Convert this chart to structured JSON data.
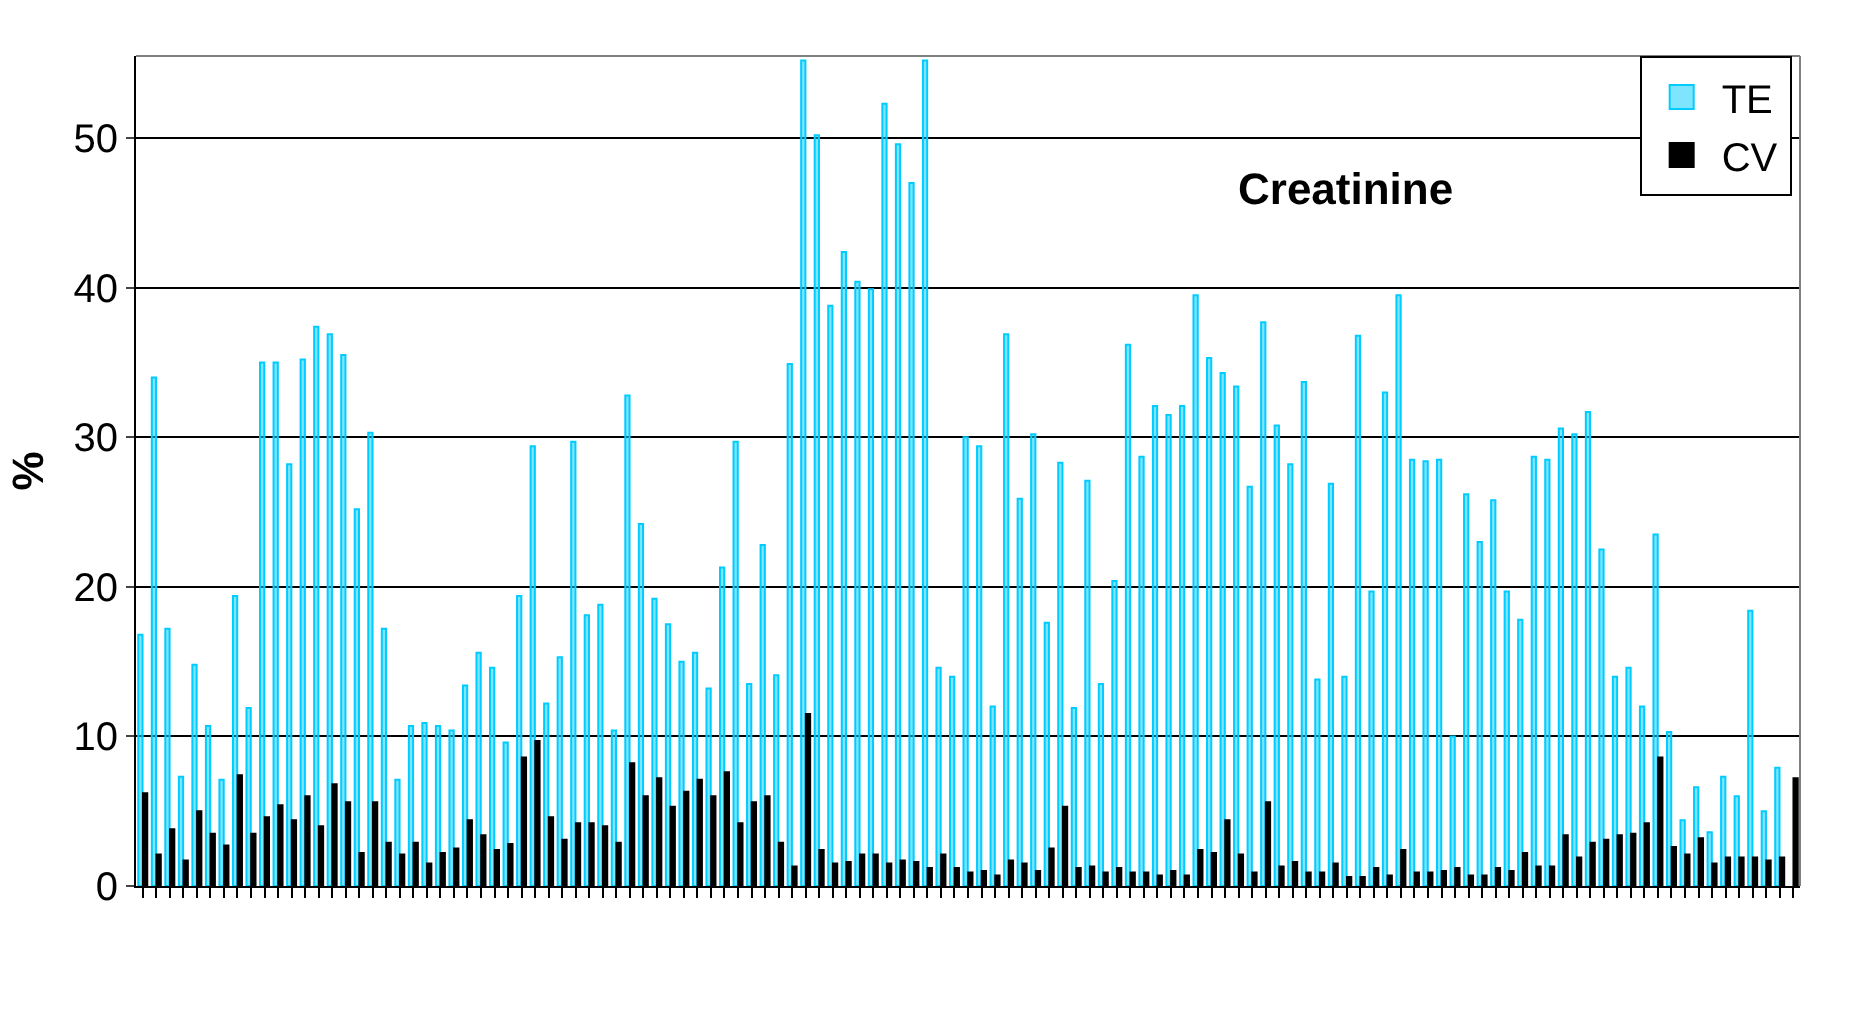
{
  "chart_data": {
    "type": "bar",
    "title": "Creatinine",
    "ylabel": "%",
    "categories": [
      null,
      null,
      null,
      null,
      null,
      null,
      null,
      null,
      null,
      null,
      null,
      null,
      null,
      null,
      null,
      null,
      null,
      null,
      null,
      null,
      null,
      null,
      null,
      null,
      null,
      null,
      null,
      null,
      null,
      null,
      null,
      null,
      null,
      null,
      null,
      null,
      null,
      null,
      null,
      null,
      null,
      null,
      null,
      null,
      null,
      null,
      null,
      null,
      null,
      null,
      null,
      null,
      null,
      null,
      null,
      null,
      null,
      null,
      null,
      null,
      null,
      null,
      null,
      null,
      null,
      null,
      null,
      null,
      null,
      null,
      null,
      null,
      null,
      null,
      null,
      null,
      null,
      null,
      null,
      null,
      null,
      null,
      null,
      null,
      null,
      null,
      null,
      null,
      null,
      null,
      null,
      null,
      null,
      null,
      null,
      null,
      null,
      null,
      null,
      null,
      null,
      null,
      null,
      null,
      null,
      null,
      null,
      null,
      null,
      null,
      null,
      null,
      null,
      null,
      null,
      null,
      null,
      null,
      null,
      null,
      null,
      null,
      null
    ],
    "series": [
      {
        "name": "TE",
        "color": "#00ccff",
        "values": [
          16.8,
          34.0,
          17.2,
          7.3,
          14.8,
          10.7,
          7.1,
          19.4,
          11.9,
          35.0,
          35.0,
          28.2,
          35.2,
          37.4,
          36.9,
          35.5,
          25.2,
          30.3,
          17.2,
          7.1,
          10.7,
          10.9,
          10.7,
          10.4,
          13.4,
          15.6,
          14.6,
          9.6,
          19.4,
          29.4,
          12.2,
          15.3,
          29.7,
          18.1,
          18.8,
          10.4,
          32.8,
          24.2,
          19.2,
          17.5,
          15.0,
          15.6,
          13.2,
          21.3,
          29.7,
          13.5,
          22.8,
          14.1,
          34.9,
          55.2,
          50.2,
          38.8,
          42.4,
          40.4,
          39.9,
          52.3,
          49.6,
          47.0,
          55.2,
          14.6,
          14.0,
          30.0,
          29.4,
          12.0,
          36.9,
          25.9,
          30.2,
          17.6,
          28.3,
          11.9,
          27.1,
          13.5,
          20.4,
          36.2,
          28.7,
          32.1,
          31.5,
          32.1,
          39.5,
          35.3,
          34.3,
          33.4,
          26.7,
          37.7,
          30.8,
          28.2,
          33.7,
          13.8,
          26.9,
          14.0,
          36.8,
          19.7,
          33.0,
          39.5,
          28.5,
          28.4,
          28.5,
          10.0,
          26.2,
          23.0,
          25.8,
          19.7,
          17.8,
          28.7,
          28.5,
          30.6,
          30.2,
          31.7,
          22.5,
          14.0,
          14.6,
          12.0,
          23.5,
          10.3,
          4.4,
          6.6,
          3.6,
          7.3,
          6.0,
          18.4,
          5.0,
          7.9,
          null
        ]
      },
      {
        "name": "CV",
        "color": "#000000",
        "values": [
          6.2,
          2.1,
          3.8,
          1.7,
          5.0,
          3.5,
          2.7,
          7.4,
          3.5,
          4.6,
          5.4,
          4.4,
          6.0,
          4.0,
          6.8,
          5.6,
          2.2,
          5.6,
          2.9,
          2.1,
          2.9,
          1.5,
          2.2,
          2.5,
          4.4,
          3.4,
          2.4,
          2.8,
          8.6,
          9.7,
          4.6,
          3.1,
          4.2,
          4.2,
          4.0,
          2.9,
          8.2,
          6.0,
          7.2,
          5.3,
          6.3,
          7.1,
          6.0,
          7.6,
          4.2,
          5.6,
          6.0,
          2.9,
          1.3,
          11.5,
          2.4,
          1.5,
          1.6,
          2.1,
          2.1,
          1.5,
          1.7,
          1.6,
          1.2,
          2.1,
          1.2,
          0.9,
          1.0,
          0.7,
          1.7,
          1.5,
          1.0,
          2.5,
          5.3,
          1.2,
          1.3,
          0.9,
          1.2,
          0.9,
          0.9,
          0.7,
          1.0,
          0.7,
          2.4,
          2.2,
          4.4,
          2.1,
          0.9,
          5.6,
          1.3,
          1.6,
          0.9,
          0.9,
          1.5,
          0.6,
          0.6,
          1.2,
          0.7,
          2.4,
          0.9,
          0.9,
          1.0,
          1.2,
          0.7,
          0.7,
          1.2,
          1.0,
          2.2,
          1.3,
          1.3,
          3.4,
          1.9,
          2.9,
          3.1,
          3.4,
          3.5,
          4.2,
          8.6,
          2.6,
          2.1,
          3.2,
          1.5,
          1.9,
          1.9,
          1.9,
          1.7,
          1.9,
          7.2
        ]
      }
    ],
    "ylim": [
      0,
      55.5
    ],
    "yticks": [
      0,
      10,
      20,
      30,
      40,
      50
    ],
    "grid": "y",
    "legend": "top right"
  }
}
